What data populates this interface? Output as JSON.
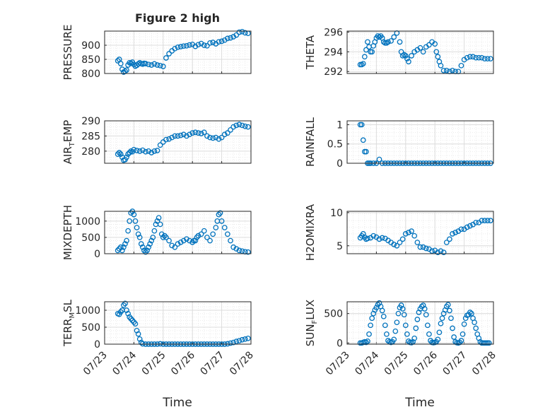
{
  "figure": {
    "title": "Figure 2 high",
    "xlabel_left": "Time",
    "xlabel_right": "Time"
  },
  "chart_data": [
    {
      "type": "scatter",
      "title": "Figure 2 high",
      "ylabel": "PRESSURE",
      "xlim": [
        0,
        5
      ],
      "ylim": [
        800,
        950
      ],
      "yticks": [
        800,
        850,
        900
      ],
      "x": [
        0.45,
        0.5,
        0.55,
        0.6,
        0.65,
        0.7,
        0.75,
        0.8,
        0.85,
        0.9,
        0.95,
        1.0,
        1.05,
        1.1,
        1.15,
        1.2,
        1.25,
        1.3,
        1.35,
        1.4,
        1.5,
        1.6,
        1.7,
        1.8,
        1.9,
        2.0,
        2.1,
        2.2,
        2.3,
        2.4,
        2.5,
        2.6,
        2.7,
        2.8,
        2.9,
        3.0,
        3.1,
        3.2,
        3.3,
        3.4,
        3.5,
        3.6,
        3.7,
        3.8,
        3.9,
        4.0,
        4.1,
        4.2,
        4.3,
        4.4,
        4.5,
        4.6,
        4.7,
        4.8,
        4.9
      ],
      "y": [
        845,
        850,
        835,
        815,
        805,
        808,
        812,
        830,
        838,
        836,
        840,
        832,
        826,
        829,
        834,
        838,
        835,
        833,
        836,
        835,
        832,
        830,
        834,
        830,
        828,
        825,
        855,
        870,
        880,
        888,
        893,
        895,
        897,
        898,
        901,
        903,
        896,
        902,
        906,
        900,
        898,
        908,
        910,
        905,
        912,
        914,
        918,
        924,
        926,
        930,
        936,
        946,
        948,
        944,
        942
      ],
      "color": "#0072BD"
    },
    {
      "type": "scatter",
      "ylabel": "THETA",
      "xlim": [
        0,
        5
      ],
      "ylim": [
        291.8,
        296.1
      ],
      "yticks": [
        292,
        294,
        296
      ],
      "x": [
        0.45,
        0.5,
        0.55,
        0.6,
        0.65,
        0.7,
        0.75,
        0.8,
        0.85,
        0.9,
        0.95,
        1.0,
        1.05,
        1.1,
        1.15,
        1.2,
        1.25,
        1.3,
        1.35,
        1.4,
        1.5,
        1.6,
        1.7,
        1.8,
        1.85,
        1.9,
        1.95,
        2.0,
        2.05,
        2.1,
        2.2,
        2.3,
        2.4,
        2.5,
        2.6,
        2.7,
        2.8,
        2.9,
        3.0,
        3.05,
        3.1,
        3.15,
        3.2,
        3.3,
        3.4,
        3.5,
        3.6,
        3.7,
        3.8,
        3.9,
        4.0,
        4.1,
        4.2,
        4.3,
        4.4,
        4.5,
        4.6,
        4.7,
        4.8,
        4.9
      ],
      "y": [
        292.7,
        292.7,
        292.8,
        293.5,
        294.2,
        295.0,
        294.5,
        294.0,
        294.0,
        294.6,
        295.0,
        295.4,
        295.6,
        295.5,
        295.6,
        295.4,
        295.0,
        294.9,
        294.9,
        295.0,
        295.1,
        295.5,
        295.9,
        295.0,
        294.0,
        293.6,
        293.7,
        293.6,
        293.3,
        293.0,
        293.6,
        294.0,
        294.2,
        294.4,
        294.0,
        294.5,
        294.7,
        295.0,
        294.8,
        294.0,
        293.5,
        293.0,
        292.6,
        292.1,
        292.1,
        292.0,
        292.1,
        292.0,
        292.0,
        292.6,
        293.2,
        293.4,
        293.5,
        293.5,
        293.4,
        293.4,
        293.4,
        293.3,
        293.3,
        293.3
      ],
      "color": "#0072BD"
    },
    {
      "type": "scatter",
      "ylabel": "AIR_TEMP",
      "xlim": [
        0,
        5
      ],
      "ylim": [
        276,
        290
      ],
      "yticks": [
        280,
        285,
        290
      ],
      "x": [
        0.45,
        0.5,
        0.55,
        0.6,
        0.65,
        0.7,
        0.75,
        0.8,
        0.85,
        0.9,
        0.95,
        1.0,
        1.1,
        1.2,
        1.3,
        1.4,
        1.5,
        1.6,
        1.7,
        1.8,
        1.9,
        2.0,
        2.1,
        2.2,
        2.3,
        2.4,
        2.5,
        2.6,
        2.7,
        2.8,
        2.9,
        3.0,
        3.1,
        3.2,
        3.3,
        3.4,
        3.5,
        3.6,
        3.7,
        3.8,
        3.9,
        4.0,
        4.1,
        4.2,
        4.3,
        4.4,
        4.5,
        4.6,
        4.7,
        4.8,
        4.9
      ],
      "y": [
        279.0,
        279.5,
        279.0,
        278.0,
        277.0,
        277.2,
        278.0,
        279.0,
        279.5,
        280.0,
        279.8,
        280.5,
        280.2,
        280.0,
        280.3,
        279.8,
        280.0,
        279.5,
        280.0,
        280.2,
        282.0,
        283.0,
        283.8,
        284.0,
        284.5,
        285.0,
        285.0,
        285.2,
        285.5,
        285.0,
        285.5,
        286.0,
        286.2,
        286.0,
        285.8,
        286.2,
        285.0,
        284.5,
        284.3,
        284.5,
        284.0,
        284.5,
        285.5,
        286.0,
        287.0,
        288.0,
        288.5,
        288.8,
        288.5,
        288.2,
        288.0
      ],
      "color": "#0072BD"
    },
    {
      "type": "scatter",
      "ylabel": "RAINFALL",
      "xlim": [
        0,
        5
      ],
      "ylim": [
        0,
        1.1
      ],
      "yticks": [
        0,
        0.5,
        1
      ],
      "x": [
        0.45,
        0.5,
        0.55,
        0.6,
        0.65,
        0.7,
        0.75,
        0.8,
        0.9,
        1.0,
        1.1,
        1.2,
        1.3,
        1.4,
        1.5,
        1.6,
        1.7,
        1.8,
        1.9,
        2.0,
        2.1,
        2.2,
        2.3,
        2.4,
        2.5,
        2.6,
        2.7,
        2.8,
        2.9,
        3.0,
        3.1,
        3.2,
        3.3,
        3.4,
        3.5,
        3.6,
        3.7,
        3.8,
        3.9,
        4.0,
        4.1,
        4.2,
        4.3,
        4.4,
        4.5,
        4.6,
        4.7,
        4.8,
        4.9
      ],
      "y": [
        1.0,
        1.0,
        0.6,
        0.3,
        0.3,
        0,
        0,
        0,
        0,
        0,
        0.1,
        0,
        0,
        0,
        0,
        0,
        0,
        0,
        0,
        0,
        0,
        0,
        0,
        0,
        0,
        0,
        0,
        0,
        0,
        0,
        0,
        0,
        0,
        0,
        0,
        0,
        0,
        0,
        0,
        0,
        0,
        0,
        0,
        0,
        0,
        0,
        0,
        0,
        0
      ],
      "color": "#0072BD"
    },
    {
      "type": "scatter",
      "ylabel": "MIXDEPTH",
      "xlim": [
        0,
        5
      ],
      "ylim": [
        0,
        1300
      ],
      "yticks": [
        0,
        500,
        1000
      ],
      "x": [
        0.45,
        0.5,
        0.55,
        0.6,
        0.65,
        0.7,
        0.75,
        0.8,
        0.85,
        0.9,
        0.95,
        1.0,
        1.05,
        1.1,
        1.15,
        1.2,
        1.25,
        1.3,
        1.35,
        1.4,
        1.45,
        1.5,
        1.55,
        1.6,
        1.65,
        1.7,
        1.75,
        1.8,
        1.85,
        1.9,
        1.95,
        2.0,
        2.05,
        2.1,
        2.2,
        2.3,
        2.4,
        2.5,
        2.6,
        2.7,
        2.8,
        2.9,
        3.0,
        3.05,
        3.1,
        3.15,
        3.2,
        3.3,
        3.4,
        3.5,
        3.6,
        3.7,
        3.8,
        3.85,
        3.9,
        3.95,
        4.0,
        4.1,
        4.2,
        4.3,
        4.4,
        4.5,
        4.6,
        4.7,
        4.8,
        4.9
      ],
      "y": [
        100,
        150,
        200,
        100,
        200,
        300,
        400,
        700,
        1000,
        1250,
        1300,
        1200,
        1000,
        800,
        600,
        500,
        300,
        200,
        100,
        50,
        100,
        200,
        300,
        400,
        500,
        700,
        900,
        1000,
        1100,
        900,
        600,
        500,
        550,
        500,
        400,
        250,
        200,
        300,
        350,
        400,
        450,
        400,
        350,
        400,
        400,
        500,
        550,
        600,
        700,
        500,
        400,
        600,
        800,
        1000,
        1200,
        1250,
        1000,
        800,
        600,
        400,
        200,
        150,
        100,
        80,
        60,
        50
      ],
      "color": "#0072BD"
    },
    {
      "type": "scatter",
      "ylabel": "H2OMIXRA",
      "xlim": [
        0,
        5
      ],
      "ylim": [
        3.8,
        10.2
      ],
      "yticks": [
        5,
        10
      ],
      "x": [
        0.45,
        0.5,
        0.55,
        0.6,
        0.65,
        0.7,
        0.8,
        0.9,
        1.0,
        1.1,
        1.2,
        1.3,
        1.4,
        1.5,
        1.6,
        1.7,
        1.8,
        1.9,
        2.0,
        2.1,
        2.2,
        2.3,
        2.4,
        2.5,
        2.6,
        2.7,
        2.8,
        2.9,
        3.0,
        3.1,
        3.2,
        3.3,
        3.4,
        3.5,
        3.6,
        3.7,
        3.8,
        3.9,
        4.0,
        4.1,
        4.2,
        4.3,
        4.4,
        4.5,
        4.6,
        4.7,
        4.8,
        4.9
      ],
      "y": [
        6.2,
        6.5,
        6.8,
        6.3,
        6.0,
        6.1,
        6.2,
        6.5,
        6.3,
        6.0,
        6.2,
        6.1,
        5.8,
        5.5,
        5.2,
        5.0,
        5.5,
        6.0,
        6.8,
        7.0,
        7.2,
        6.5,
        5.5,
        4.8,
        4.8,
        4.6,
        4.5,
        4.2,
        4.3,
        4.0,
        4.2,
        4.0,
        5.5,
        6.0,
        6.8,
        7.0,
        7.2,
        7.5,
        7.5,
        7.8,
        8.0,
        8.2,
        8.5,
        8.5,
        8.8,
        8.8,
        8.8,
        8.8
      ],
      "color": "#0072BD"
    },
    {
      "type": "scatter",
      "ylabel": "TERR_MSL",
      "xlim": [
        0,
        5
      ],
      "ylim": [
        0,
        1250
      ],
      "yticks": [
        0,
        500,
        1000
      ],
      "x": [
        0.45,
        0.5,
        0.55,
        0.6,
        0.65,
        0.7,
        0.75,
        0.8,
        0.85,
        0.9,
        0.95,
        1.0,
        1.05,
        1.1,
        1.15,
        1.2,
        1.25,
        1.3,
        1.4,
        1.5,
        1.6,
        1.7,
        1.8,
        1.9,
        2.0,
        2.1,
        2.2,
        2.3,
        2.4,
        2.5,
        2.6,
        2.7,
        2.8,
        2.9,
        3.0,
        3.1,
        3.2,
        3.3,
        3.4,
        3.5,
        3.6,
        3.7,
        3.8,
        3.9,
        4.0,
        4.1,
        4.2,
        4.3,
        4.4,
        4.5,
        4.6,
        4.7,
        4.8,
        4.9
      ],
      "y": [
        900,
        880,
        950,
        1000,
        1150,
        1200,
        1000,
        900,
        800,
        750,
        700,
        650,
        600,
        400,
        300,
        150,
        50,
        10,
        0,
        0,
        0,
        0,
        0,
        10,
        0,
        0,
        0,
        0,
        0,
        0,
        0,
        0,
        0,
        0,
        0,
        0,
        0,
        0,
        0,
        0,
        0,
        0,
        0,
        0,
        0,
        0,
        10,
        30,
        50,
        80,
        100,
        130,
        150,
        170
      ],
      "color": "#0072BD"
    },
    {
      "type": "scatter",
      "ylabel": "SUN_FLUX",
      "xlim": [
        0,
        5
      ],
      "ylim": [
        -20,
        700
      ],
      "yticks": [
        0,
        500
      ],
      "x": [
        0.45,
        0.5,
        0.55,
        0.6,
        0.65,
        0.7,
        0.75,
        0.8,
        0.85,
        0.9,
        0.95,
        1.0,
        1.05,
        1.1,
        1.15,
        1.2,
        1.25,
        1.3,
        1.35,
        1.4,
        1.45,
        1.5,
        1.55,
        1.6,
        1.65,
        1.7,
        1.75,
        1.8,
        1.85,
        1.9,
        1.95,
        2.0,
        2.05,
        2.1,
        2.15,
        2.2,
        2.25,
        2.3,
        2.35,
        2.4,
        2.45,
        2.5,
        2.55,
        2.6,
        2.65,
        2.7,
        2.75,
        2.8,
        2.85,
        2.9,
        2.95,
        3.0,
        3.05,
        3.1,
        3.15,
        3.2,
        3.25,
        3.3,
        3.35,
        3.4,
        3.45,
        3.5,
        3.55,
        3.6,
        3.65,
        3.7,
        3.75,
        3.8,
        3.85,
        3.9,
        3.95,
        4.0,
        4.05,
        4.1,
        4.15,
        4.2,
        4.25,
        4.3,
        4.35,
        4.4,
        4.45,
        4.5,
        4.55,
        4.6,
        4.65,
        4.7,
        4.75,
        4.8,
        4.85
      ],
      "y": [
        0,
        0,
        10,
        20,
        10,
        30,
        150,
        300,
        420,
        500,
        560,
        600,
        650,
        680,
        620,
        550,
        450,
        300,
        150,
        40,
        20,
        10,
        20,
        60,
        200,
        350,
        500,
        600,
        640,
        580,
        480,
        300,
        150,
        30,
        10,
        5,
        20,
        80,
        250,
        400,
        520,
        580,
        620,
        640,
        580,
        480,
        300,
        150,
        40,
        10,
        5,
        10,
        20,
        60,
        180,
        330,
        420,
        500,
        560,
        620,
        650,
        550,
        420,
        250,
        100,
        20,
        5,
        0,
        10,
        40,
        150,
        320,
        420,
        470,
        480,
        520,
        500,
        420,
        350,
        250,
        150,
        80,
        20,
        0,
        0,
        0,
        0,
        0,
        0
      ],
      "color": "#0072BD"
    }
  ],
  "axes_common": {
    "xticklabels": [
      "07/23",
      "07/24",
      "07/25",
      "07/26",
      "07/27",
      "07/28"
    ],
    "ylabel_display": [
      {
        "main": "PRESSURE",
        "sub": "",
        "post": ""
      },
      {
        "main": "THETA",
        "sub": "",
        "post": ""
      },
      {
        "main": "AIR",
        "sub": "T",
        "post": "EMP"
      },
      {
        "main": "RAINFALL",
        "sub": "",
        "post": ""
      },
      {
        "main": "MIXDEPTH",
        "sub": "",
        "post": ""
      },
      {
        "main": "H2OMIXRA",
        "sub": "",
        "post": ""
      },
      {
        "main": "TERR",
        "sub": "M",
        "post": "SL"
      },
      {
        "main": "SUN",
        "sub": "F",
        "post": "LUX"
      }
    ],
    "grid": true
  }
}
